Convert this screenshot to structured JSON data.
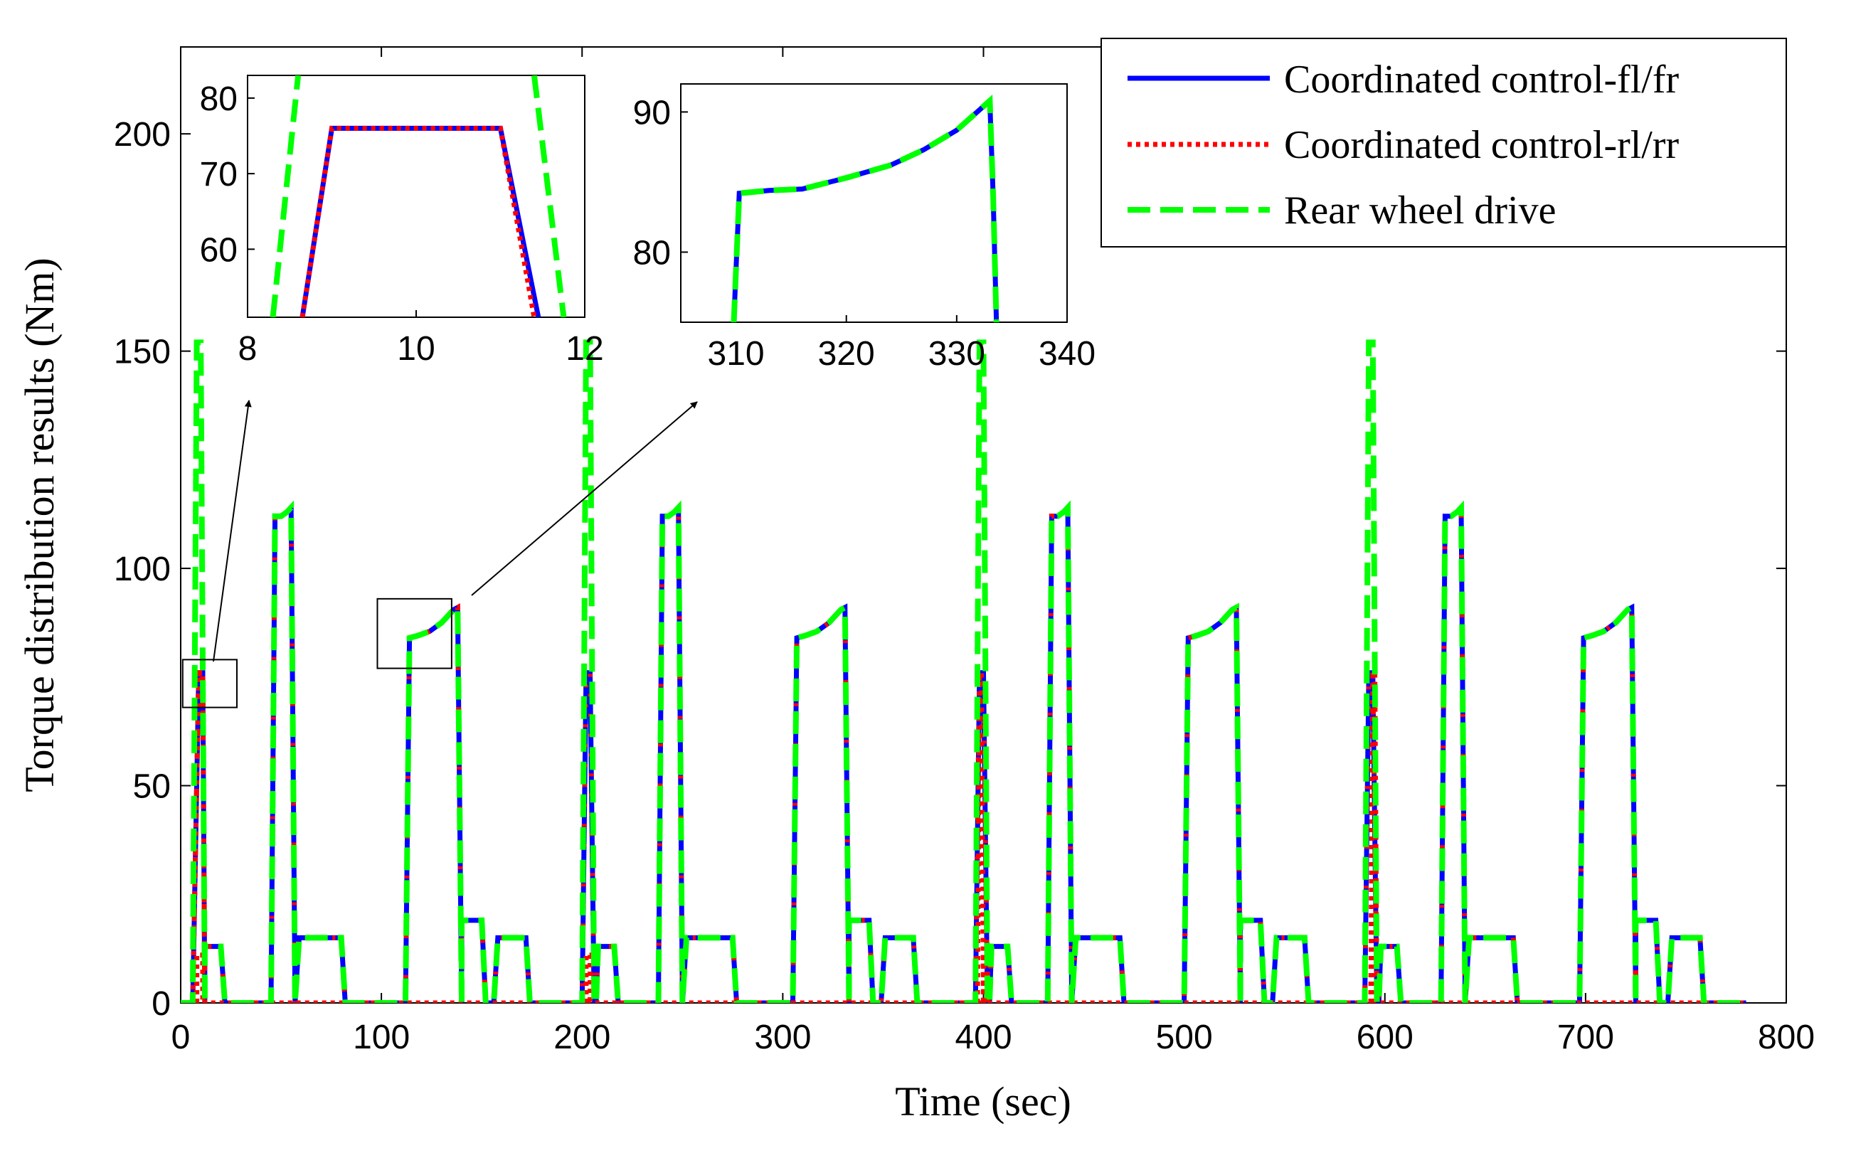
{
  "colors": {
    "fl_fr": "#0000ff",
    "rl_rr": "#ff0000",
    "rear": "#00ff00",
    "axis": "#000000"
  },
  "chart_data": [
    {
      "id": "main",
      "type": "line",
      "title": "",
      "xlabel": "Time (sec)",
      "ylabel": "Torque distribution results (Nm)",
      "xlim": [
        0,
        800
      ],
      "ylim": [
        0,
        220
      ],
      "xticks": [
        0,
        100,
        200,
        300,
        400,
        500,
        600,
        700,
        800
      ],
      "xtick_labels": [
        "0",
        "100",
        "200",
        "300",
        "400",
        "500",
        "600",
        "700",
        "800"
      ],
      "yticks": [
        0,
        50,
        100,
        150,
        200
      ],
      "ytick_labels": [
        "0",
        "50",
        "100",
        "150",
        "200"
      ],
      "legend": {
        "position": "top-right",
        "entries": [
          "Coordinated control-fl/fr",
          "Coordinated control-rl/rr",
          "Rear wheel drive"
        ]
      },
      "series": [
        {
          "name": "Coordinated control-fl/fr",
          "style": "solid",
          "x": [
            0,
            6,
            9,
            11,
            12,
            12,
            20,
            22,
            45,
            47,
            50,
            53,
            55,
            57,
            59,
            80,
            82,
            112,
            114,
            118,
            124,
            130,
            136,
            138,
            140,
            140,
            150,
            152,
            156,
            158,
            172,
            174,
            200,
            202,
            204,
            206,
            207,
            208,
            208,
            216,
            218,
            238,
            240,
            243,
            246,
            248,
            250,
            252,
            275,
            277,
            305,
            307,
            311,
            317,
            323,
            329,
            331,
            333,
            333,
            343,
            345,
            349,
            351,
            365,
            367,
            396,
            398,
            400,
            402,
            403,
            404,
            404,
            412,
            414,
            432,
            434,
            437,
            440,
            442,
            444,
            446,
            468,
            470,
            500,
            502,
            506,
            512,
            518,
            524,
            526,
            528,
            528,
            538,
            540,
            544,
            546,
            560,
            562,
            590,
            592,
            594,
            596,
            597,
            598,
            598,
            606,
            608,
            628,
            630,
            633,
            636,
            638,
            640,
            642,
            664,
            666,
            697,
            699,
            703,
            709,
            715,
            721,
            723,
            725,
            725,
            735,
            737,
            741,
            743,
            757,
            759,
            780
          ],
          "y": [
            0,
            0,
            76,
            76,
            0,
            13,
            13,
            0,
            0,
            112,
            112,
            113,
            114,
            0,
            15,
            15,
            0,
            0,
            84,
            84.5,
            85.5,
            87.5,
            90.5,
            91,
            0,
            19,
            19,
            0,
            0,
            15,
            15,
            0,
            0,
            76,
            76,
            0,
            0,
            13,
            13,
            13,
            0,
            0,
            112,
            112,
            113,
            114,
            0,
            15,
            15,
            0,
            0,
            84,
            84.5,
            85.5,
            87.5,
            90.5,
            91,
            0,
            19,
            19,
            0,
            0,
            15,
            15,
            0,
            0,
            76,
            76,
            0,
            0,
            13,
            13,
            13,
            0,
            0,
            112,
            112,
            113,
            114,
            0,
            15,
            15,
            0,
            0,
            84,
            84.5,
            85.5,
            87.5,
            90.5,
            91,
            0,
            19,
            19,
            0,
            0,
            15,
            15,
            0,
            0,
            76,
            76,
            0,
            0,
            13,
            13,
            13,
            0,
            0,
            112,
            112,
            113,
            114,
            0,
            15,
            15,
            0,
            0,
            84,
            84.5,
            85.5,
            87.5,
            90.5,
            91,
            0,
            19,
            19,
            0,
            0,
            15,
            15,
            0,
            0
          ]
        },
        {
          "name": "Coordinated control-rl/rr",
          "style": "dotted",
          "x": [
            0,
            6,
            9,
            11,
            12,
            12,
            780
          ],
          "y": [
            0,
            0,
            76,
            76,
            0,
            0,
            0
          ],
          "extra_segments": [
            {
              "x": [
                8,
                8,
                11,
                11
              ],
              "y": [
                0,
                11,
                11,
                0
              ]
            },
            {
              "x": [
                202,
                202,
                204,
                204
              ],
              "y": [
                0,
                11,
                11,
                0
              ]
            },
            {
              "x": [
                397,
                398,
                399,
                400
              ],
              "y": [
                0,
                76,
                76,
                0
              ]
            },
            {
              "x": [
                400,
                400,
                402,
                402
              ],
              "y": [
                0,
                11,
                11,
                0
              ]
            },
            {
              "x": [
                593,
                594,
                595,
                596
              ],
              "y": [
                0,
                76,
                76,
                0
              ]
            },
            {
              "x": [
                594,
                594,
                596,
                596
              ],
              "y": [
                0,
                11,
                11,
                0
              ]
            }
          ]
        },
        {
          "name": "Rear wheel drive",
          "style": "dashed",
          "x": [
            0,
            6,
            8,
            10,
            12,
            12,
            20,
            22,
            45,
            47,
            50,
            53,
            55,
            57,
            59,
            80,
            82,
            112,
            114,
            118,
            124,
            130,
            136,
            138,
            140,
            140,
            150,
            152,
            156,
            158,
            172,
            174,
            200,
            202,
            204,
            206,
            207,
            208,
            208,
            216,
            218,
            238,
            240,
            243,
            246,
            248,
            250,
            252,
            275,
            277,
            305,
            307,
            311,
            317,
            323,
            329,
            331,
            333,
            333,
            343,
            345,
            349,
            351,
            365,
            367,
            396,
            398,
            400,
            402,
            403,
            404,
            404,
            412,
            414,
            432,
            434,
            437,
            440,
            442,
            444,
            446,
            468,
            470,
            500,
            502,
            506,
            512,
            518,
            524,
            526,
            528,
            528,
            538,
            540,
            544,
            546,
            560,
            562,
            590,
            592,
            594,
            596,
            597,
            598,
            598,
            606,
            608,
            628,
            630,
            633,
            636,
            638,
            640,
            642,
            664,
            666,
            697,
            699,
            703,
            709,
            715,
            721,
            723,
            725,
            725,
            735,
            737,
            741,
            743,
            757,
            759,
            780
          ],
          "y": [
            0,
            0,
            152,
            152,
            0,
            13,
            13,
            0,
            0,
            112,
            112,
            113,
            114,
            0,
            15,
            15,
            0,
            0,
            84,
            84.5,
            85.5,
            87.5,
            90.5,
            91,
            0,
            19,
            19,
            0,
            0,
            15,
            15,
            0,
            0,
            152,
            152,
            0,
            0,
            13,
            13,
            13,
            0,
            0,
            112,
            112,
            113,
            114,
            0,
            15,
            15,
            0,
            0,
            84,
            84.5,
            85.5,
            87.5,
            90.5,
            91,
            0,
            19,
            19,
            0,
            0,
            15,
            15,
            0,
            0,
            152,
            152,
            0,
            0,
            13,
            13,
            13,
            0,
            0,
            112,
            112,
            113,
            114,
            0,
            15,
            15,
            0,
            0,
            84,
            84.5,
            85.5,
            87.5,
            90.5,
            91,
            0,
            19,
            19,
            0,
            0,
            15,
            15,
            0,
            0,
            152,
            152,
            0,
            0,
            13,
            13,
            13,
            0,
            0,
            112,
            112,
            113,
            114,
            0,
            15,
            15,
            0,
            0,
            84,
            84.5,
            85.5,
            87.5,
            90.5,
            91,
            0,
            19,
            19,
            0,
            0,
            15,
            15,
            0,
            0
          ]
        }
      ],
      "zoom_boxes": [
        {
          "name": "zoom-box-left",
          "xlim": [
            1,
            28
          ],
          "ylim": [
            68,
            79
          ]
        },
        {
          "name": "zoom-box-right",
          "xlim": [
            98,
            135
          ],
          "ylim": [
            77,
            93
          ]
        }
      ]
    },
    {
      "id": "inset-left",
      "type": "line",
      "xlim": [
        8,
        12
      ],
      "ylim": [
        51,
        83
      ],
      "xticks": [
        8,
        10,
        12
      ],
      "xtick_labels": [
        "8",
        "10",
        "12"
      ],
      "yticks": [
        60,
        70,
        80
      ],
      "ytick_labels": [
        "60",
        "70",
        "80"
      ],
      "series": [
        {
          "name": "Coordinated control-fl/fr",
          "style": "solid",
          "x": [
            8.65,
            9.0,
            11.0,
            11.45
          ],
          "y": [
            51,
            76,
            76,
            51
          ]
        },
        {
          "name": "Coordinated control-rl/rr",
          "style": "dotted",
          "x": [
            8.65,
            9.0,
            11.0,
            11.4
          ],
          "y": [
            51,
            76,
            76,
            51
          ]
        },
        {
          "name": "Rear wheel drive",
          "style": "dashed",
          "x": [
            8.3,
            8.6
          ],
          "y": [
            51,
            83
          ],
          "x2": [
            11.4,
            11.75
          ],
          "y2": [
            83,
            51
          ]
        }
      ]
    },
    {
      "id": "inset-right",
      "type": "line",
      "xlim": [
        305,
        340
      ],
      "ylim": [
        75,
        92
      ],
      "xticks": [
        310,
        320,
        330,
        340
      ],
      "xtick_labels": [
        "310",
        "320",
        "330",
        "340"
      ],
      "yticks": [
        80,
        90
      ],
      "ytick_labels": [
        "80",
        "90"
      ],
      "series": [
        {
          "name": "Coordinated control-fl/fr",
          "style": "solid",
          "x": [
            309.8,
            310.3,
            313,
            316,
            320,
            324,
            327,
            330,
            333,
            333.3,
            333.6
          ],
          "y": [
            75,
            84.2,
            84.4,
            84.5,
            85.3,
            86.2,
            87.3,
            88.7,
            90.8,
            84,
            75
          ]
        },
        {
          "name": "Rear wheel drive",
          "style": "dashed",
          "x": [
            309.8,
            310.3,
            313,
            316,
            320,
            324,
            327,
            330,
            333,
            333.3,
            333.6
          ],
          "y": [
            75,
            84.2,
            84.4,
            84.5,
            85.3,
            86.2,
            87.3,
            88.7,
            90.8,
            84,
            75
          ]
        }
      ]
    }
  ]
}
